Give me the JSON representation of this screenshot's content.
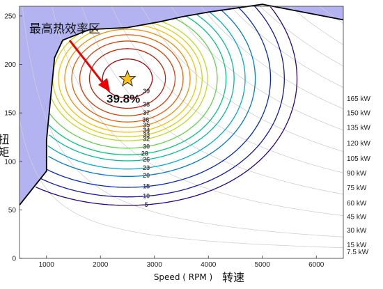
{
  "chart_data": {
    "type": "contour",
    "xlabel": "Speed ( RPM )",
    "xlabel_cn": "转速",
    "ylabel_cn": "扭矩",
    "xlim": [
      500,
      6500
    ],
    "ylim": [
      0,
      260
    ],
    "xticks": [
      1000,
      2000,
      3000,
      4000,
      5000,
      6000
    ],
    "yticks": [
      0,
      50,
      100,
      150,
      200,
      250
    ],
    "annotation": "最高热效率区",
    "peak": {
      "x": 2500,
      "y": 185,
      "label": "39.8%",
      "marker": "star"
    },
    "colors": {
      "unreachable": "#b3b3f2",
      "star": "#ffc21a",
      "arrow": "#ee0000"
    },
    "max_torque_curve": [
      [
        500,
        55
      ],
      [
        1000,
        90
      ],
      [
        1000,
        122
      ],
      [
        1150,
        207
      ],
      [
        1300,
        225
      ],
      [
        1800,
        236
      ],
      [
        2500,
        238
      ],
      [
        3100,
        244
      ],
      [
        3500,
        249
      ],
      [
        4000,
        254
      ],
      [
        5000,
        262
      ],
      [
        6500,
        246
      ]
    ],
    "power_lines": [
      {
        "label": "7.5 kW",
        "kw": 7.5
      },
      {
        "label": "15 kW",
        "kw": 15
      },
      {
        "label": "30 kW",
        "kw": 30
      },
      {
        "label": "45 kW",
        "kw": 45
      },
      {
        "label": "60 kW",
        "kw": 60
      },
      {
        "label": "75 kW",
        "kw": 75
      },
      {
        "label": "90 kW",
        "kw": 90
      },
      {
        "label": "105 kW",
        "kw": 105
      },
      {
        "label": "120 kW",
        "kw": 120
      },
      {
        "label": "135 kW",
        "kw": 135
      },
      {
        "label": "150 kW",
        "kw": 150
      },
      {
        "label": "165 kW",
        "kw": 165
      }
    ],
    "power_label_torque": [
      7,
      14,
      29,
      43,
      57,
      73,
      88,
      103,
      119,
      135,
      150,
      165
    ],
    "bte_levels": [
      5,
      10,
      15,
      20,
      23,
      26,
      28,
      30,
      32,
      33,
      34,
      35,
      36,
      37,
      38,
      39
    ],
    "bte_model": {
      "peak": 39.8,
      "x0": 2500,
      "y0": 185,
      "sx": 1250,
      "sy": 55,
      "k": 0.55
    }
  }
}
